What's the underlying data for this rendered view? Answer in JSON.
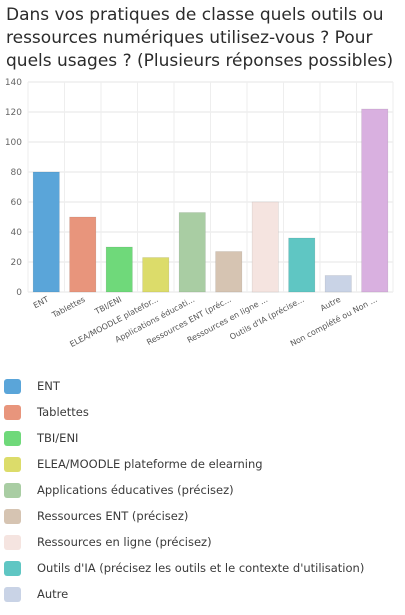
{
  "chart_data": {
    "type": "bar",
    "title": "Dans vos pratiques de classe quels outils ou ressources numériques utilisez-vous ? Pour quels usages ? (Plusieurs réponses possibles)",
    "categories": [
      "ENT",
      "Tablettes",
      "TBI/ENI",
      "ELEA/MOODLE platefor...",
      "Applications éducati...",
      "Ressources ENT (préc...",
      "Ressources en ligne ...",
      "Outils d'IA (précise...",
      "Autre",
      "Non complété ou Non ..."
    ],
    "values": [
      80,
      50,
      30,
      23,
      53,
      27,
      60,
      36,
      11,
      122
    ],
    "colors": [
      "#5aa5d9",
      "#e8957c",
      "#6fd97a",
      "#dcdc6a",
      "#a9cda3",
      "#d6c4b2",
      "#f5e4e0",
      "#5fc6c3",
      "#c9d3e6",
      "#d9b0e0"
    ],
    "ylim": [
      0,
      140
    ],
    "yticks": [
      0,
      20,
      40,
      60,
      80,
      100,
      120,
      140
    ],
    "grid": true,
    "legend_position": "bottom"
  },
  "legend": [
    {
      "label": "ENT",
      "color": "#5aa5d9"
    },
    {
      "label": "Tablettes",
      "color": "#e8957c"
    },
    {
      "label": "TBI/ENI",
      "color": "#6fd97a"
    },
    {
      "label": "ELEA/MOODLE plateforme de elearning",
      "color": "#dcdc6a"
    },
    {
      "label": "Applications éducatives (précisez)",
      "color": "#a9cda3"
    },
    {
      "label": "Ressources ENT (précisez)",
      "color": "#d6c4b2"
    },
    {
      "label": "Ressources en ligne (précisez)",
      "color": "#f5e4e0"
    },
    {
      "label": "Outils d'IA (précisez les outils et le contexte d'utilisation)",
      "color": "#5fc6c3"
    },
    {
      "label": "Autre",
      "color": "#c9d3e6"
    }
  ]
}
